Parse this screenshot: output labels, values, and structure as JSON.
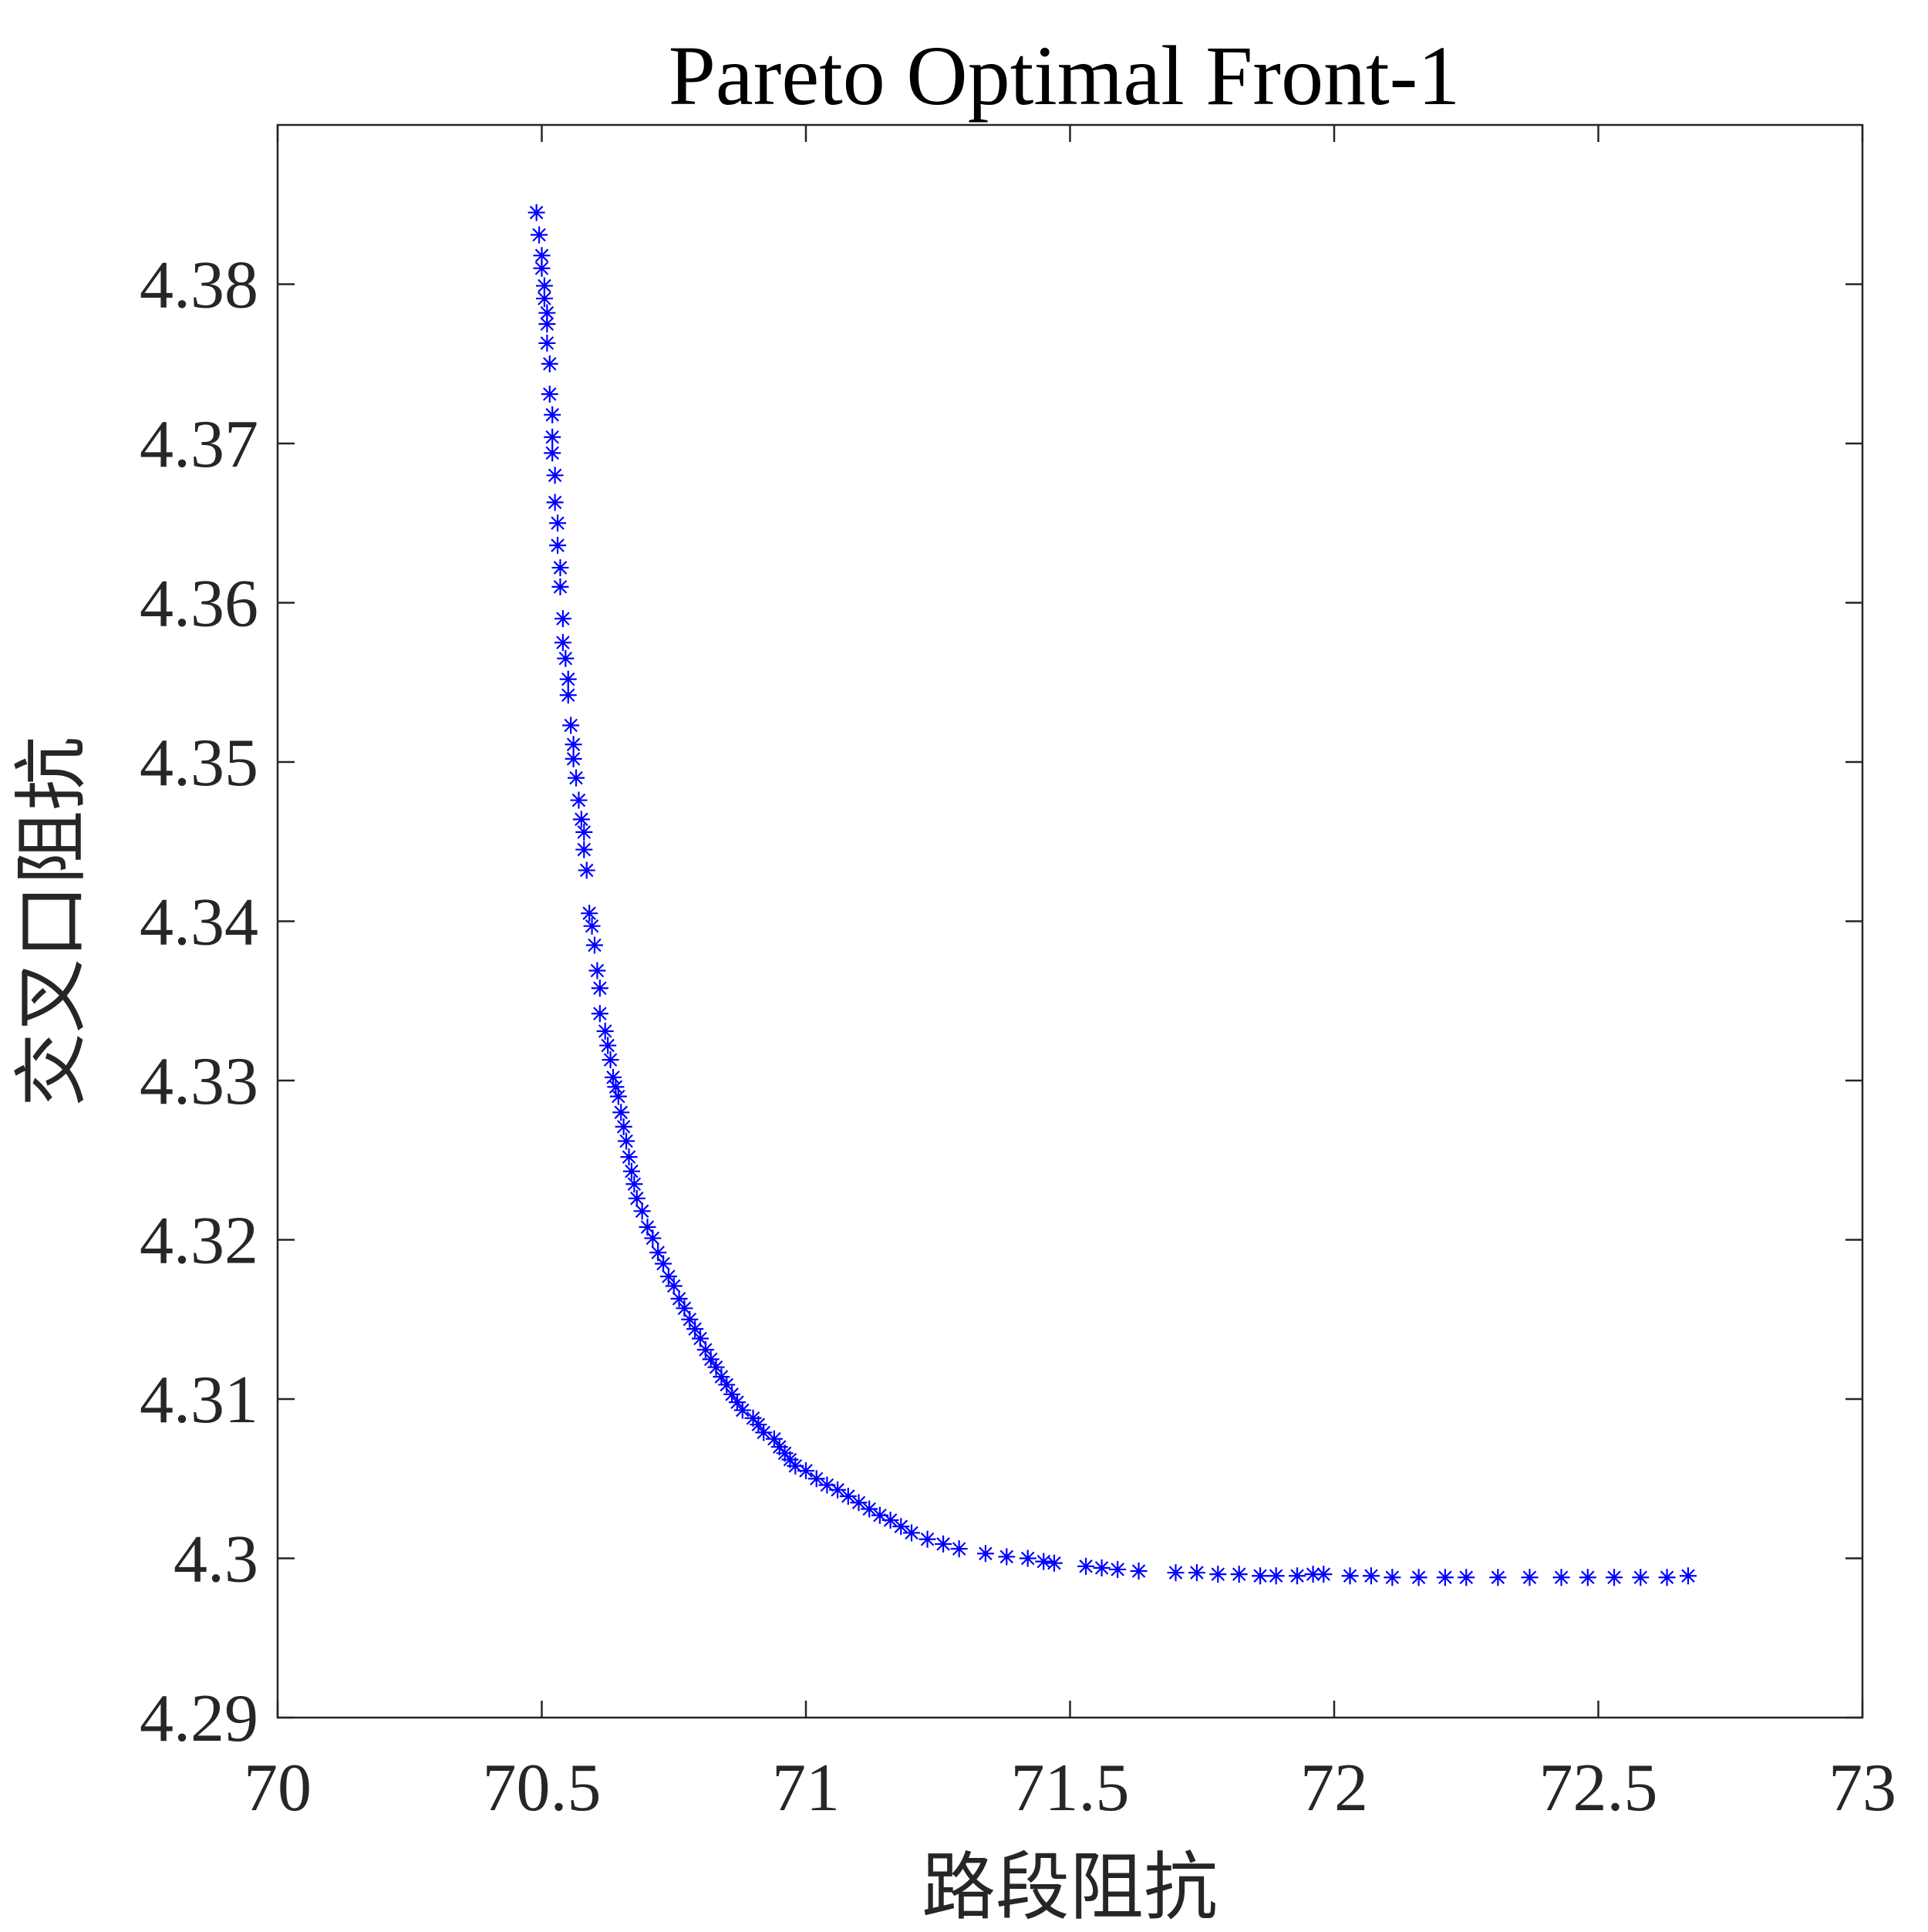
{
  "chart_data": {
    "type": "scatter",
    "title": "Pareto Optimal Front-1",
    "xlabel": "路段阻抗",
    "ylabel": "交叉口阻抗",
    "xlim": [
      70,
      73
    ],
    "ylim": [
      4.29,
      4.39
    ],
    "xticks": [
      "70",
      "70.5",
      "71",
      "71.5",
      "72",
      "72.5",
      "73"
    ],
    "xtick_values": [
      70,
      70.5,
      71,
      71.5,
      72,
      72.5,
      73
    ],
    "yticks": [
      "4.29",
      "4.3",
      "4.31",
      "4.32",
      "4.33",
      "4.34",
      "4.35",
      "4.36",
      "4.37",
      "4.38"
    ],
    "ytick_values": [
      4.29,
      4.3,
      4.31,
      4.32,
      4.33,
      4.34,
      4.35,
      4.36,
      4.37,
      4.38
    ],
    "marker": "asterisk",
    "marker_color": "#0000ff",
    "box": true,
    "grid": false,
    "x": [
      70.49,
      70.495,
      70.5,
      70.5,
      70.505,
      70.505,
      70.51,
      70.51,
      70.51,
      70.515,
      70.515,
      70.52,
      70.52,
      70.52,
      70.525,
      70.525,
      70.53,
      70.53,
      70.535,
      70.535,
      70.54,
      70.54,
      70.545,
      70.55,
      70.55,
      70.555,
      70.56,
      70.56,
      70.565,
      70.57,
      70.575,
      70.58,
      70.58,
      70.585,
      70.59,
      70.595,
      70.6,
      70.605,
      70.61,
      70.61,
      70.62,
      70.625,
      70.63,
      70.635,
      70.64,
      70.645,
      70.65,
      70.655,
      70.66,
      70.665,
      70.67,
      70.675,
      70.68,
      70.69,
      70.7,
      70.71,
      70.72,
      70.73,
      70.74,
      70.75,
      70.76,
      70.77,
      70.78,
      70.79,
      70.8,
      70.81,
      70.82,
      70.83,
      70.84,
      70.85,
      70.86,
      70.87,
      70.88,
      70.9,
      70.91,
      70.92,
      70.94,
      70.95,
      70.96,
      70.97,
      70.98,
      71.0,
      71.02,
      71.04,
      71.06,
      71.08,
      71.1,
      71.12,
      71.14,
      71.16,
      71.18,
      71.2,
      71.23,
      71.26,
      71.29,
      71.34,
      71.38,
      71.42,
      71.45,
      71.47,
      71.53,
      71.56,
      71.59,
      71.63,
      71.7,
      71.74,
      71.78,
      71.82,
      71.86,
      71.89,
      71.93,
      71.96,
      71.98,
      72.03,
      72.07,
      72.11,
      72.16,
      72.21,
      72.25,
      72.31,
      72.37,
      72.43,
      72.48,
      72.53,
      72.58,
      72.63,
      72.67
    ],
    "y": [
      4.3845,
      4.3831,
      4.3818,
      4.381,
      4.3799,
      4.3791,
      4.3782,
      4.3775,
      4.3763,
      4.375,
      4.3731,
      4.3718,
      4.3704,
      4.3694,
      4.368,
      4.3663,
      4.365,
      4.3636,
      4.3622,
      4.361,
      4.359,
      4.3575,
      4.3565,
      4.3552,
      4.3542,
      4.3523,
      4.3511,
      4.3502,
      4.349,
      4.3476,
      4.3464,
      4.3456,
      4.3445,
      4.3432,
      4.3405,
      4.3397,
      4.3385,
      4.3369,
      4.3358,
      4.3342,
      4.3331,
      4.3322,
      4.3313,
      4.3302,
      4.3296,
      4.329,
      4.328,
      4.3271,
      4.3262,
      4.3252,
      4.3243,
      4.3235,
      4.3226,
      4.3218,
      4.3208,
      4.3201,
      4.3192,
      4.3185,
      4.3177,
      4.3171,
      4.3163,
      4.3157,
      4.315,
      4.3144,
      4.3138,
      4.3131,
      4.3125,
      4.312,
      4.3114,
      4.3109,
      4.3103,
      4.3098,
      4.3093,
      4.3088,
      4.3084,
      4.3079,
      4.3075,
      4.307,
      4.3066,
      4.3062,
      4.3058,
      4.3055,
      4.305,
      4.3046,
      4.3043,
      4.3039,
      4.3035,
      4.3031,
      4.3027,
      4.3024,
      4.302,
      4.3016,
      4.3012,
      4.3009,
      4.3006,
      4.3003,
      4.3001,
      4.3,
      4.2998,
      4.2997,
      4.2995,
      4.2994,
      4.2993,
      4.2992,
      4.2991,
      4.2991,
      4.299,
      4.299,
      4.2989,
      4.2989,
      4.2989,
      4.299,
      4.299,
      4.2989,
      4.2989,
      4.2988,
      4.2988,
      4.2988,
      4.2988,
      4.2988,
      4.2988,
      4.2988,
      4.2988,
      4.2988,
      4.2988,
      4.2988,
      4.2989
    ]
  }
}
